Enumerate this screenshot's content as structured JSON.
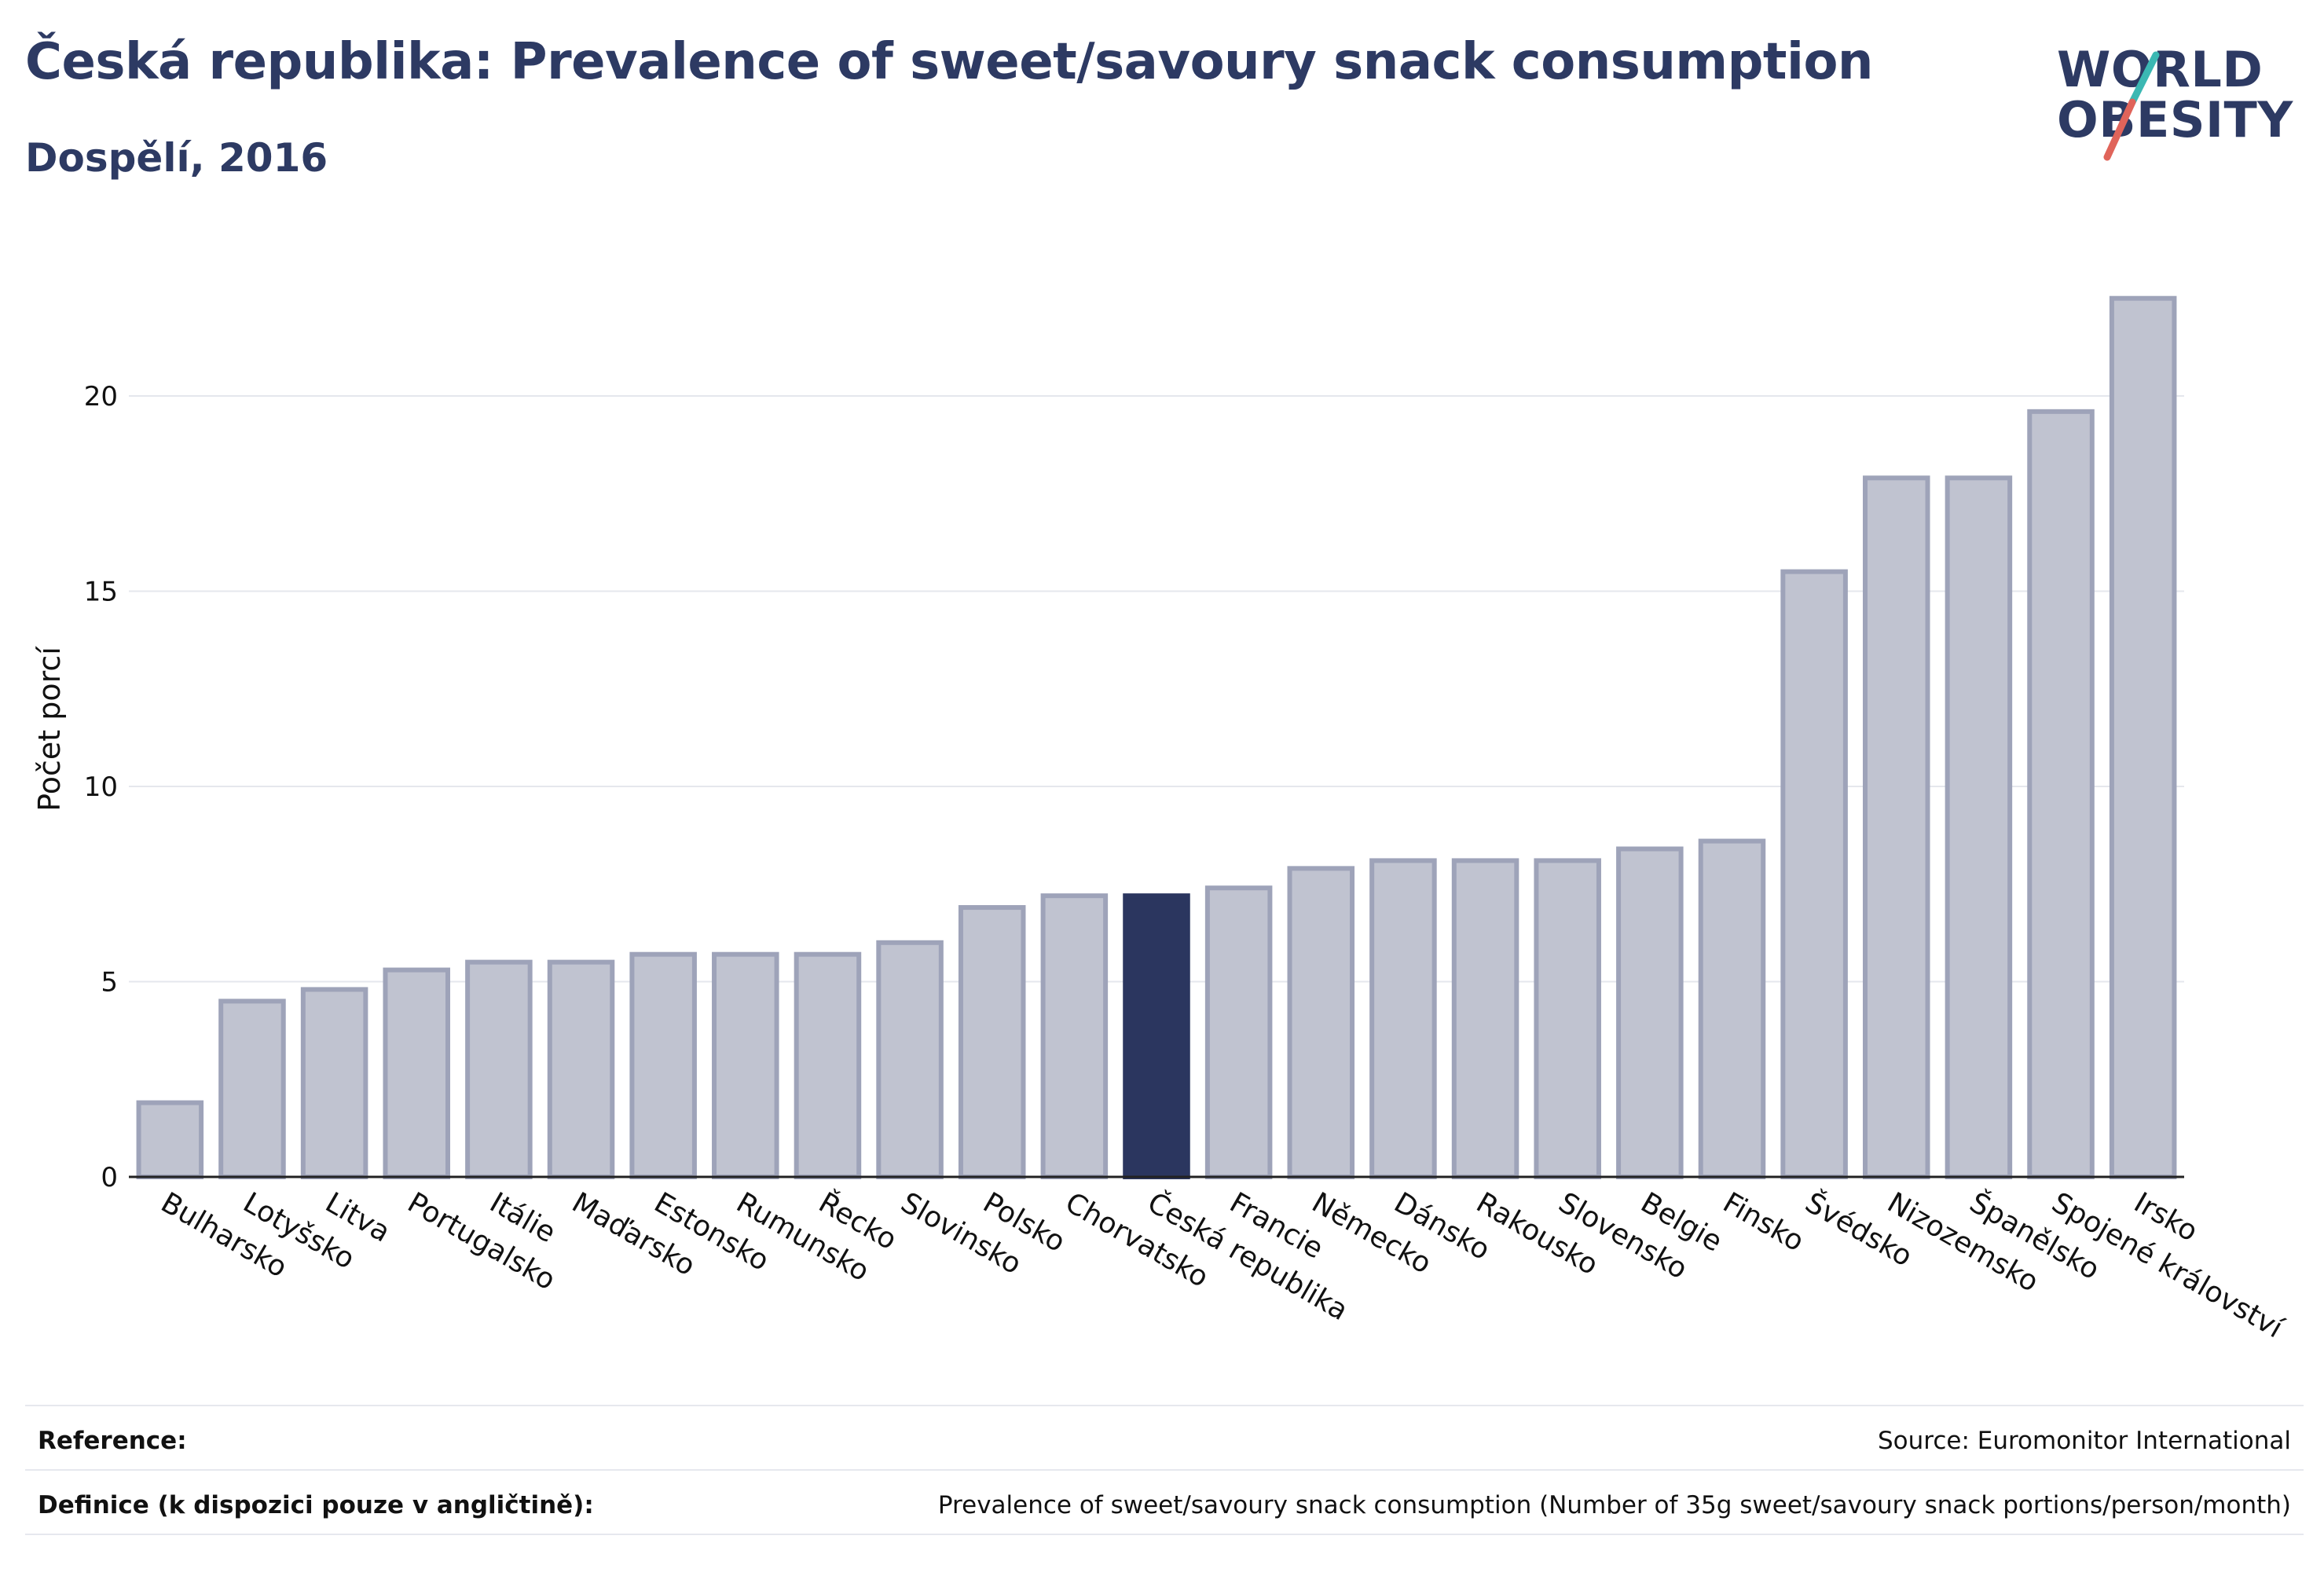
{
  "header": {
    "title": "Česká republika: Prevalence of sweet/savoury snack consumption",
    "subtitle": "Dospělí, 2016"
  },
  "logo": {
    "line1": "WORLD",
    "line2": "OBESITY",
    "colors": {
      "text": "#2d3a63",
      "accent_teal": "#3bb8b3",
      "accent_red": "#e0645a"
    }
  },
  "chart_data": {
    "type": "bar",
    "title": "Česká republika: Prevalence of sweet/savoury snack consumption",
    "subtitle": "Dospělí, 2016",
    "xlabel": "",
    "ylabel": "Počet porcí",
    "ylim": [
      0,
      23.5
    ],
    "yticks": [
      0,
      5,
      10,
      15,
      20
    ],
    "grid": true,
    "legend": "none",
    "highlight": "Česká republika",
    "colors": {
      "bar": "#c0c3d0",
      "bar_edge": "#9ea3b9",
      "highlight": "#2b365f",
      "grid": "#e5e7ed",
      "axis": "#222222"
    },
    "categories": [
      "Bulharsko",
      "Lotyšsko",
      "Litva",
      "Portugalsko",
      "Itálie",
      "Maďarsko",
      "Estonsko",
      "Rumunsko",
      "Řecko",
      "Slovinsko",
      "Polsko",
      "Chorvatsko",
      "Česká republika",
      "Francie",
      "Německo",
      "Dánsko",
      "Rakousko",
      "Slovensko",
      "Belgie",
      "Finsko",
      "Švédsko",
      "Nizozemsko",
      "Španělsko",
      "Spojené království",
      "Irsko"
    ],
    "values": [
      1.9,
      4.5,
      4.8,
      5.3,
      5.5,
      5.5,
      5.7,
      5.7,
      5.7,
      6.0,
      6.9,
      7.2,
      7.2,
      7.4,
      7.9,
      8.1,
      8.1,
      8.1,
      8.4,
      8.6,
      15.5,
      17.9,
      17.9,
      19.6,
      22.5
    ]
  },
  "footer": {
    "reference_label": "Reference:",
    "reference_value": "Source: Euromonitor International",
    "definition_label": "Definice (k dispozici pouze v angličtině):",
    "definition_value": "Prevalence of sweet/savoury snack consumption (Number of 35g sweet/savoury snack portions/person/month)"
  }
}
